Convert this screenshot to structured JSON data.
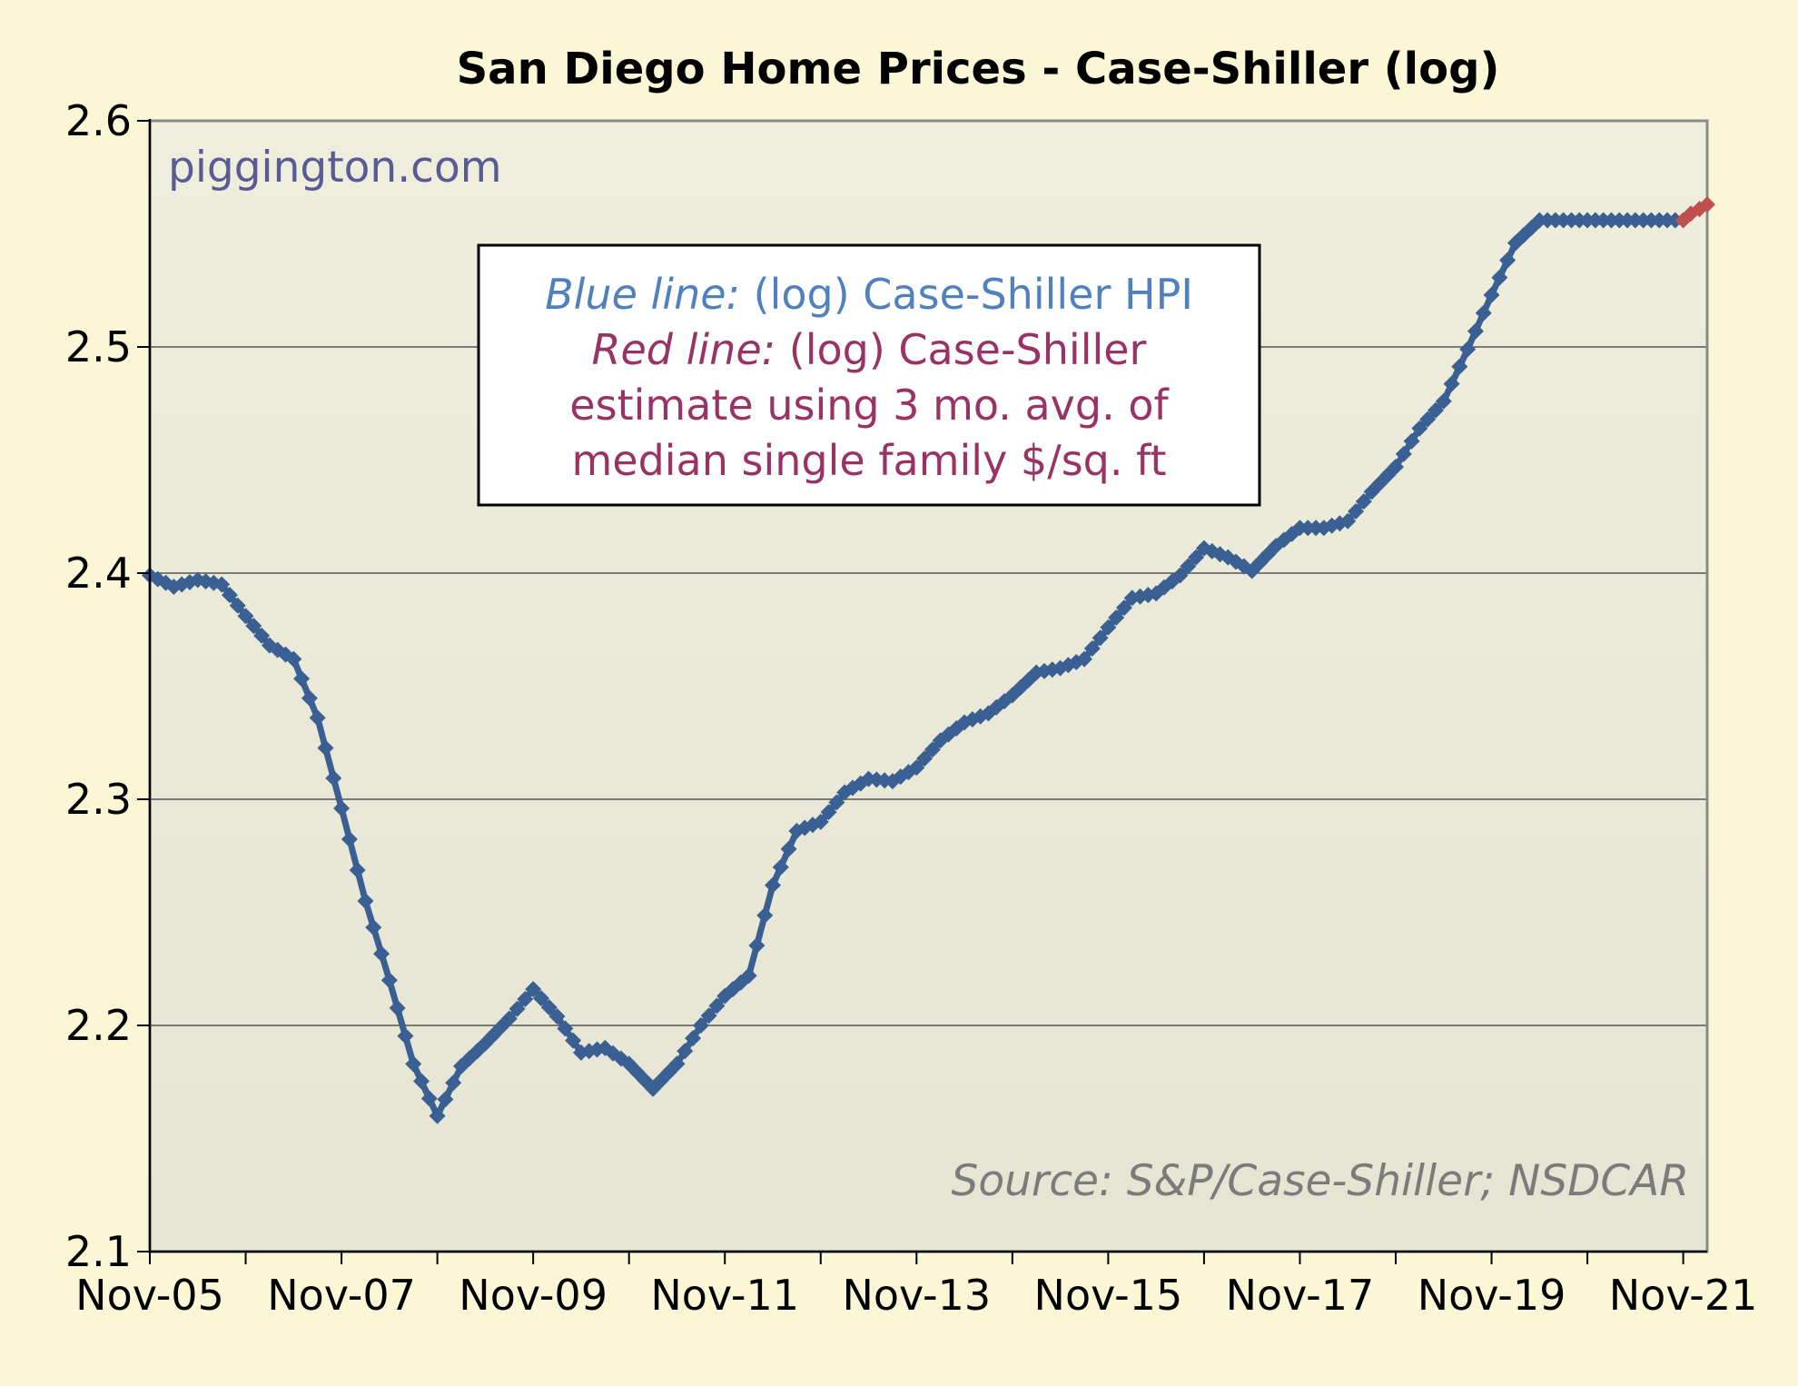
{
  "chart_data": {
    "type": "line",
    "title": "San Diego Home Prices - Case-Shiller (log)",
    "watermark": "piggington.com",
    "source": "Source: S&P/Case-Shiller; NSDCAR",
    "xlabel": "",
    "ylabel": "",
    "ylim": [
      2.1,
      2.6
    ],
    "yticks": [
      "2.6",
      "2.5",
      "2.4",
      "2.3",
      "2.2",
      "2.1"
    ],
    "xticks": [
      "Nov-05",
      "Nov-07",
      "Nov-09",
      "Nov-11",
      "Nov-13",
      "Nov-15",
      "Nov-17",
      "Nov-19",
      "Nov-21"
    ],
    "x_range_years": [
      0,
      16.25
    ],
    "grid": true,
    "legend": {
      "line1_label": "Blue line:",
      "line1_text": " (log) Case-Shiller HPI",
      "line2_label": "Red line:",
      "line2_text": " (log) Case-Shiller",
      "line3": "estimate using 3 mo. avg. of",
      "line4": "median single family $/sq. ft"
    },
    "series": [
      {
        "name": "(log) Case-Shiller HPI",
        "color": "#3a5f93",
        "anchors_years": [
          0,
          0.25,
          0.5,
          0.75,
          1.0,
          1.25,
          1.5,
          1.75,
          2.0,
          2.25,
          2.5,
          2.75,
          3.0,
          3.25,
          3.5,
          3.75,
          4.0,
          4.25,
          4.5,
          4.75,
          5.0,
          5.25,
          5.5,
          5.75,
          6.0,
          6.25,
          6.5,
          6.75,
          7.0,
          7.25,
          7.5,
          7.75,
          8.0,
          8.25,
          8.5,
          8.75,
          9.0,
          9.25,
          9.5,
          9.75,
          10.0,
          10.25,
          10.5,
          10.75,
          11.0,
          11.25,
          11.5,
          11.75,
          12.0,
          12.25,
          12.5,
          12.75,
          13.0,
          13.25,
          13.5,
          13.75,
          14.0,
          14.25,
          14.5,
          14.75,
          15.0,
          15.25,
          15.5,
          15.75,
          15.95
        ],
        "anchors_values": [
          2.399,
          2.394,
          2.397,
          2.395,
          2.381,
          2.368,
          2.362,
          2.336,
          2.296,
          2.255,
          2.22,
          2.183,
          2.16,
          2.182,
          2.192,
          2.203,
          2.216,
          2.204,
          2.188,
          2.19,
          2.183,
          2.172,
          2.183,
          2.2,
          2.213,
          2.222,
          2.262,
          2.286,
          2.29,
          2.303,
          2.309,
          2.308,
          2.314,
          2.326,
          2.334,
          2.338,
          2.346,
          2.356,
          2.358,
          2.362,
          2.376,
          2.389,
          2.391,
          2.399,
          2.411,
          2.407,
          2.401,
          2.412,
          2.42,
          2.42,
          2.423,
          2.436,
          2.447,
          2.464,
          2.476,
          2.499,
          2.523,
          2.546,
          2.556,
          2.556,
          2.556,
          2.556,
          2.556,
          2.556,
          2.556
        ]
      },
      {
        "name": "(log) Case-Shiller estimate using 3 mo. avg. of median single family $/sq. ft",
        "color": "#c0504d",
        "x_years": [
          16.0,
          16.08,
          16.17,
          16.25
        ],
        "values": [
          2.556,
          2.559,
          2.561,
          2.563
        ]
      }
    ]
  }
}
